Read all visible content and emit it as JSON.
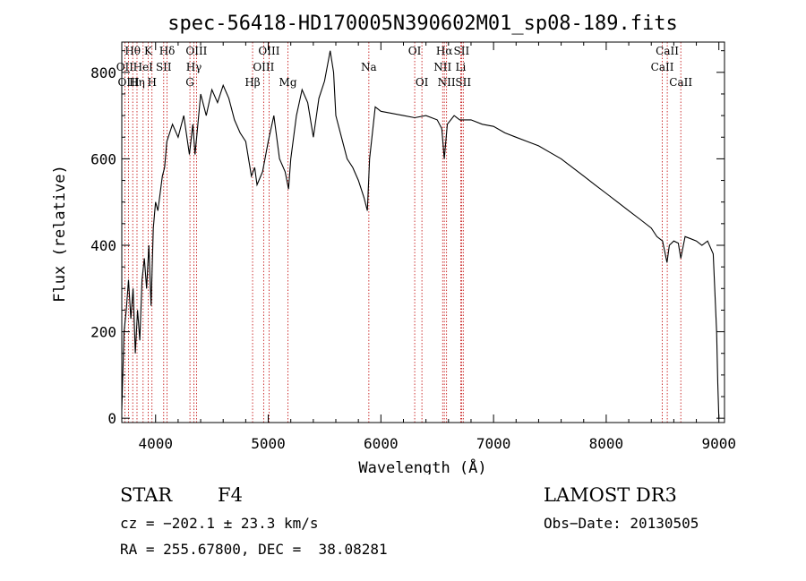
{
  "chart_data": {
    "type": "line",
    "title": "spec-56418-HD170005N390602M01_sp08-189.fits",
    "xlabel": "Wavelength (Å)",
    "ylabel": "Flux (relative)",
    "xlim": [
      3700,
      9050
    ],
    "ylim": [
      -10,
      870
    ],
    "xticks": [
      4000,
      5000,
      6000,
      7000,
      8000,
      9000
    ],
    "yticks": [
      0,
      200,
      400,
      600,
      800
    ],
    "line_color": "#000000",
    "marker_color": "#c00000",
    "series": [
      {
        "name": "spectrum",
        "x": [
          3700,
          3720,
          3740,
          3760,
          3780,
          3800,
          3820,
          3840,
          3860,
          3880,
          3900,
          3920,
          3940,
          3960,
          3980,
          4000,
          4020,
          4040,
          4060,
          4080,
          4100,
          4150,
          4200,
          4250,
          4300,
          4330,
          4350,
          4400,
          4450,
          4500,
          4550,
          4600,
          4650,
          4700,
          4750,
          4800,
          4850,
          4880,
          4900,
          4950,
          5000,
          5050,
          5100,
          5150,
          5180,
          5200,
          5250,
          5300,
          5350,
          5400,
          5450,
          5500,
          5550,
          5580,
          5600,
          5650,
          5700,
          5750,
          5800,
          5850,
          5880,
          5900,
          5950,
          6000,
          6100,
          6200,
          6300,
          6400,
          6500,
          6540,
          6563,
          6590,
          6650,
          6700,
          6800,
          6900,
          7000,
          7100,
          7200,
          7300,
          7400,
          7500,
          7600,
          7700,
          7800,
          7900,
          8000,
          8100,
          8200,
          8300,
          8400,
          8450,
          8500,
          8540,
          8560,
          8600,
          8640,
          8662,
          8700,
          8750,
          8800,
          8850,
          8900,
          8950,
          8980,
          8990,
          9000
        ],
        "y": [
          20,
          200,
          250,
          320,
          230,
          300,
          150,
          250,
          180,
          320,
          370,
          300,
          400,
          260,
          440,
          500,
          480,
          520,
          560,
          580,
          640,
          680,
          650,
          700,
          610,
          680,
          610,
          750,
          700,
          760,
          730,
          770,
          740,
          690,
          660,
          640,
          560,
          580,
          540,
          570,
          640,
          700,
          600,
          570,
          530,
          600,
          700,
          760,
          730,
          650,
          740,
          780,
          850,
          800,
          700,
          650,
          600,
          580,
          550,
          510,
          480,
          600,
          720,
          710,
          705,
          700,
          695,
          700,
          690,
          670,
          600,
          680,
          700,
          690,
          690,
          680,
          675,
          660,
          650,
          640,
          630,
          615,
          600,
          580,
          560,
          540,
          520,
          500,
          480,
          460,
          440,
          420,
          410,
          360,
          400,
          410,
          405,
          370,
          420,
          415,
          410,
          400,
          410,
          380,
          200,
          80,
          0
        ]
      }
    ],
    "lines": [
      {
        "name": "OII",
        "x": 3727,
        "row": 1
      },
      {
        "name": "OIII",
        "x": 3760,
        "row": 2
      },
      {
        "name": "Hθ",
        "x": 3797,
        "row": 0
      },
      {
        "name": "Hη",
        "x": 3835,
        "row": 2
      },
      {
        "name": "HeI",
        "x": 3889,
        "row": 1
      },
      {
        "name": "K",
        "x": 3934,
        "row": 0
      },
      {
        "name": "H",
        "x": 3968,
        "row": 2
      },
      {
        "name": "SII",
        "x": 4072,
        "row": 1
      },
      {
        "name": "Hδ",
        "x": 4102,
        "row": 0
      },
      {
        "name": "G",
        "x": 4305,
        "row": 2
      },
      {
        "name": "Hγ",
        "x": 4340,
        "row": 1
      },
      {
        "name": "OIII",
        "x": 4363,
        "row": 0
      },
      {
        "name": "Hβ",
        "x": 4861,
        "row": 2
      },
      {
        "name": "OIII",
        "x": 4959,
        "row": 1
      },
      {
        "name": "OIII",
        "x": 5007,
        "row": 0
      },
      {
        "name": "Mg",
        "x": 5175,
        "row": 2
      },
      {
        "name": "Na",
        "x": 5893,
        "row": 1
      },
      {
        "name": "OI",
        "x": 6300,
        "row": 0
      },
      {
        "name": "OI",
        "x": 6364,
        "row": 2
      },
      {
        "name": "NII",
        "x": 6548,
        "row": 1
      },
      {
        "name": "Hα",
        "x": 6563,
        "row": 0
      },
      {
        "name": "NII",
        "x": 6583,
        "row": 2
      },
      {
        "name": "Li",
        "x": 6708,
        "row": 1
      },
      {
        "name": "SII",
        "x": 6716,
        "row": 0
      },
      {
        "name": "SII",
        "x": 6731,
        "row": 2
      },
      {
        "name": "CaII",
        "x": 8498,
        "row": 1
      },
      {
        "name": "CaII",
        "x": 8542,
        "row": 0
      },
      {
        "name": "CaII",
        "x": 8662,
        "row": 2
      }
    ]
  },
  "info": {
    "class": "STAR",
    "subclass": "F4",
    "survey": "LAMOST DR3",
    "cz": "cz = −202.1 ± 23.3 km/s",
    "obs_date": "Obs−Date: 20130505",
    "coords": "RA = 255.67800, DEC =  38.08281"
  }
}
